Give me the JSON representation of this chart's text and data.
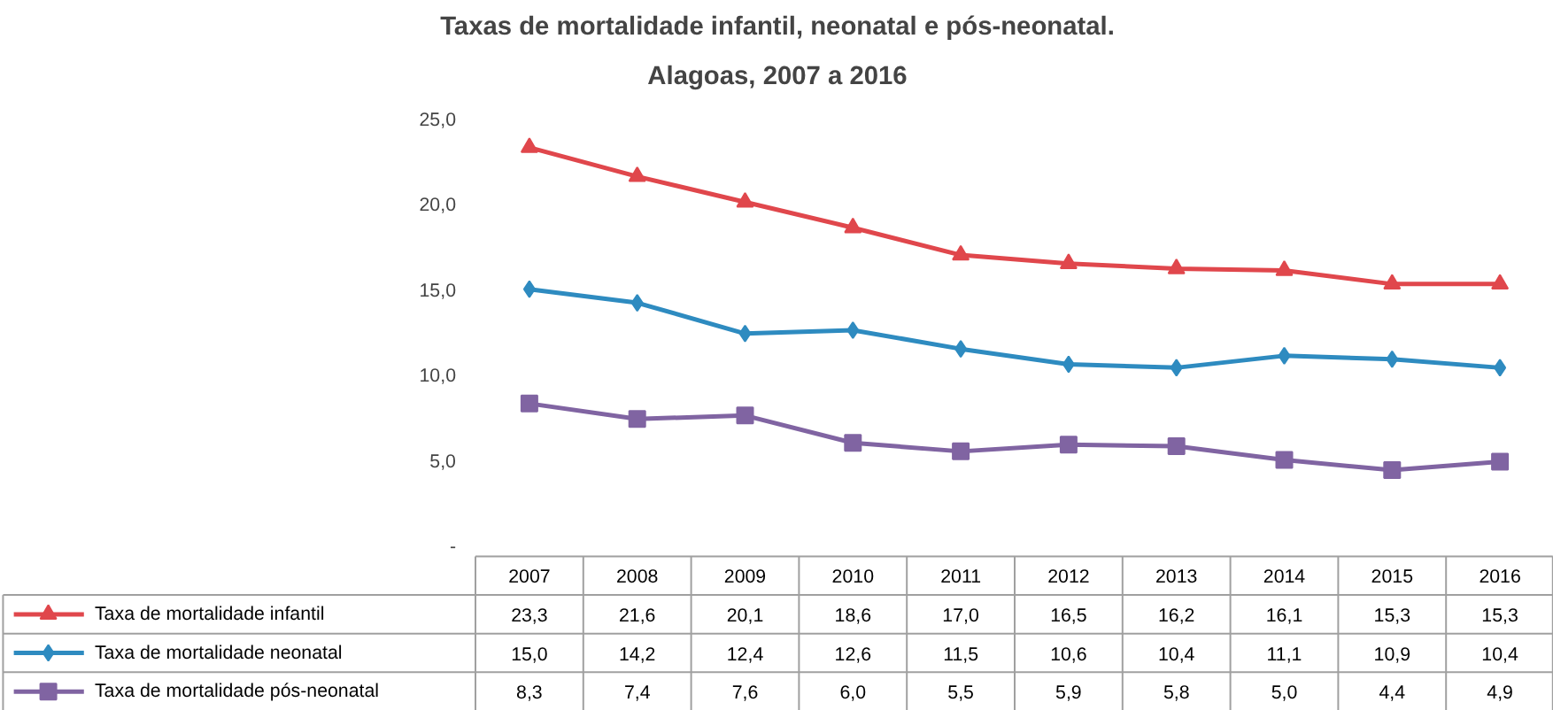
{
  "chart_data": {
    "type": "line",
    "title": "Taxas de mortalidade infantil, neonatal e pós-neonatal.",
    "subtitle": "Alagoas, 2007 a 2016",
    "categories": [
      "2007",
      "2008",
      "2009",
      "2010",
      "2011",
      "2012",
      "2013",
      "2014",
      "2015",
      "2016"
    ],
    "ylim": [
      0,
      25
    ],
    "yticks": [
      {
        "value": 0,
        "label": "-"
      },
      {
        "value": 5,
        "label": "5,0"
      },
      {
        "value": 10,
        "label": "10,0"
      },
      {
        "value": 15,
        "label": "15,0"
      },
      {
        "value": 20,
        "label": "20,0"
      },
      {
        "value": 25,
        "label": "25,0"
      }
    ],
    "grid": false,
    "legend": "bottom",
    "line_style": "solid",
    "series": [
      {
        "name": "Taxa de mortalidade infantil",
        "color": "#e0474c",
        "marker": "triangle",
        "values": [
          23.3,
          21.6,
          20.1,
          18.6,
          17.0,
          16.5,
          16.2,
          16.1,
          15.3,
          15.3
        ],
        "value_labels": [
          "23,3",
          "21,6",
          "20,1",
          "18,6",
          "17,0",
          "16,5",
          "16,2",
          "16,1",
          "15,3",
          "15,3"
        ]
      },
      {
        "name": "Taxa de mortalidade neonatal",
        "color": "#2e8bc0",
        "marker": "diamond",
        "values": [
          15.0,
          14.2,
          12.4,
          12.6,
          11.5,
          10.6,
          10.4,
          11.1,
          10.9,
          10.4
        ],
        "value_labels": [
          "15,0",
          "14,2",
          "12,4",
          "12,6",
          "11,5",
          "10,6",
          "10,4",
          "11,1",
          "10,9",
          "10,4"
        ]
      },
      {
        "name": "Taxa de mortalidade pós-neonatal",
        "color": "#8064a2",
        "marker": "square",
        "values": [
          8.3,
          7.4,
          7.6,
          6.0,
          5.5,
          5.9,
          5.8,
          5.0,
          4.4,
          4.9
        ],
        "value_labels": [
          "8,3",
          "7,4",
          "7,6",
          "6,0",
          "5,5",
          "5,9",
          "5,8",
          "5,0",
          "4,4",
          "4,9"
        ]
      }
    ]
  }
}
